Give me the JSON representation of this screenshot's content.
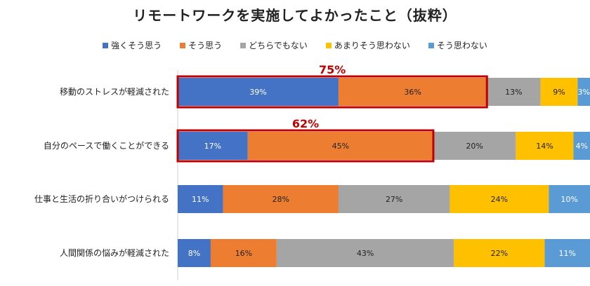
{
  "chart_data": {
    "type": "bar",
    "orientation": "horizontal",
    "stacked": true,
    "title": "リモートワークを実施してよかったこと（抜粋）",
    "categories": [
      "移動のストレスが軽減された",
      "自分のペースで働くことができる",
      "仕事と生活の折り合いがつけられる",
      "人間関係の悩みが軽減された"
    ],
    "series": [
      {
        "name": "強くそう思う",
        "color": "#4472c4",
        "values": [
          39,
          17,
          11,
          8
        ]
      },
      {
        "name": "そう思う",
        "color": "#ed7d31",
        "values": [
          36,
          45,
          28,
          16
        ]
      },
      {
        "name": "どちらでもない",
        "color": "#a5a5a5",
        "values": [
          13,
          20,
          27,
          43
        ]
      },
      {
        "name": "あまりそう思わない",
        "color": "#ffc000",
        "values": [
          9,
          14,
          24,
          22
        ]
      },
      {
        "name": "そう思わない",
        "color": "#5b9bd5",
        "values": [
          3,
          4,
          10,
          11
        ]
      }
    ],
    "annotations": [
      {
        "category_index": 0,
        "text": "75%",
        "series_span": [
          0,
          1
        ]
      },
      {
        "category_index": 1,
        "text": "62%",
        "series_span": [
          0,
          1
        ]
      }
    ],
    "xlim": [
      0,
      100
    ],
    "legend_position": "top",
    "highlight_color": "#c00000"
  }
}
